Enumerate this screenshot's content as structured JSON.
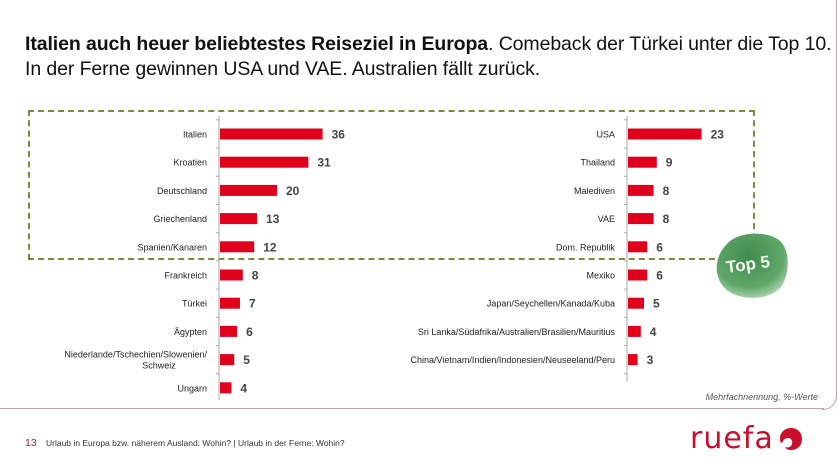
{
  "title": {
    "bold": "Italien auch heuer beliebtestes Reiseziel in Europa",
    "rest_line1": ". Comeback der Türkei unter die Top 10.",
    "line2": "In der Ferne gewinnen USA und VAE. Australien fällt zurück."
  },
  "badge": {
    "label": "Top 5"
  },
  "note": "Mehrfachnennung, %-Werte",
  "footer": {
    "page_number": "13",
    "text": "Urlaub in Europa bzw. näherem Ausland: Wohin? | Urlaub in der Ferne: Wohin?"
  },
  "logo": {
    "text": "ruefa",
    "color": "#c8102e"
  },
  "colors": {
    "bar": "#e0001b",
    "top5_border": "#7d8a3a",
    "badge": "#4f9a5a"
  },
  "chart_data": [
    {
      "type": "bar",
      "orientation": "horizontal",
      "title": "Urlaub in Europa bzw. näherem Ausland: Wohin?",
      "xlabel": "",
      "ylabel": "",
      "unit": "%",
      "xlim": [
        0,
        40
      ],
      "grid": false,
      "categories": [
        "Italien",
        "Kroatien",
        "Deutschland",
        "Griechenland",
        "Spanien/Kanaren",
        "Frankreich",
        "Türkei",
        "Ägypten",
        "Niederlande/Tschechien/Slowenien/\nSchweiz",
        "Ungarn"
      ],
      "values": [
        36,
        31,
        20,
        13,
        12,
        8,
        7,
        6,
        5,
        4
      ],
      "top5_highlight": true
    },
    {
      "type": "bar",
      "orientation": "horizontal",
      "title": "Urlaub in der Ferne: Wohin?",
      "xlabel": "",
      "ylabel": "",
      "unit": "%",
      "xlim": [
        0,
        40
      ],
      "grid": false,
      "categories": [
        "USA",
        "Thailand",
        "Malediven",
        "VAE",
        "Dom. Republik",
        "Mexiko",
        "Japan/Seychellen/Kanada/Kuba",
        "Sri Lanka/Südafrika/Australien/Brasilien/Mauritius",
        "China/Vietnam/Indien/Indonesien/Neuseeland/Peru"
      ],
      "values": [
        23,
        9,
        8,
        8,
        6,
        6,
        5,
        4,
        3
      ],
      "top5_highlight": true
    }
  ]
}
